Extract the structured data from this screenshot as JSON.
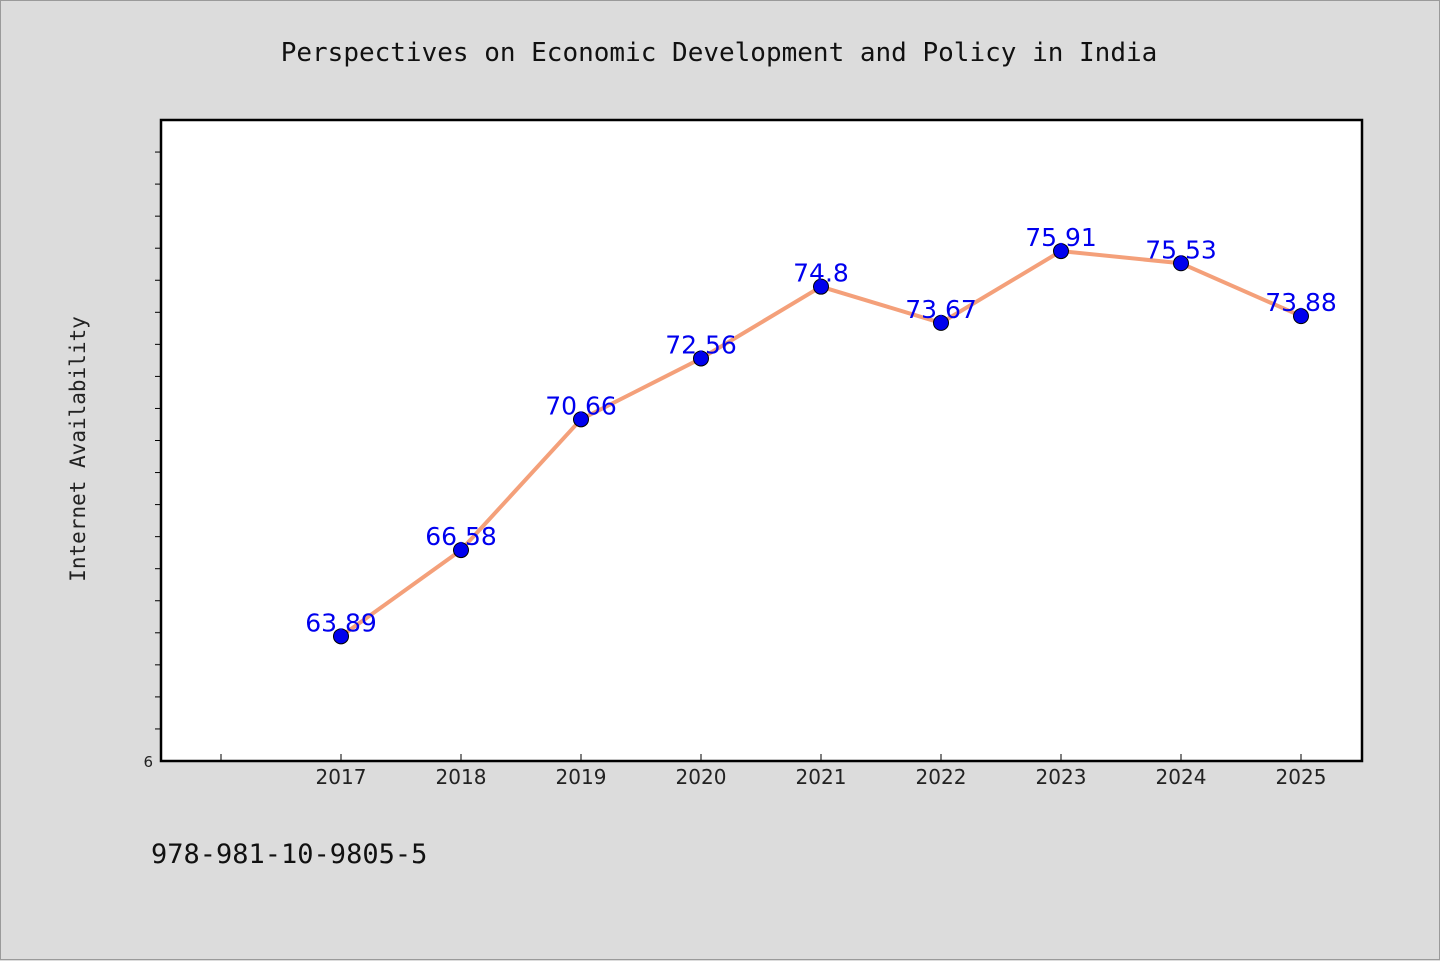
{
  "chart_data": {
    "type": "line",
    "title": "Perspectives on Economic Development and Policy in India",
    "xlabel": "",
    "ylabel": "Internet Availability",
    "x": [
      "2017",
      "2018",
      "2019",
      "2020",
      "2021",
      "2022",
      "2023",
      "2024",
      "2025"
    ],
    "series": [
      {
        "values": [
          63.89,
          66.58,
          70.66,
          72.56,
          74.8,
          73.67,
          75.91,
          75.53,
          73.88
        ],
        "data_labels": [
          "63.89",
          "66.58",
          "70.66",
          "72.56",
          "74.8",
          "73.67",
          "75.91",
          "75.53",
          "73.88"
        ]
      }
    ],
    "ylim": [
      60,
      80
    ],
    "y_tick_label": "6",
    "grid": false,
    "line_color": "#f4a07a",
    "marker_color": "#0000ee",
    "label_color": "#0000ee",
    "background_color": "#dcdcdc",
    "plot_background_color": "#ffffff"
  },
  "footer": {
    "isbn": "978-981-10-9805-5"
  }
}
